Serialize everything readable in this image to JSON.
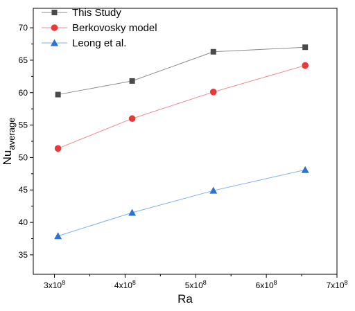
{
  "chart_data": {
    "type": "line",
    "title": "",
    "xlabel": "Ra",
    "ylabel": "Nu",
    "ylabel_sub": "average",
    "x": [
      305000000,
      410000000,
      525000000,
      655000000
    ],
    "xlim": [
      270000000,
      700000000
    ],
    "ylim": [
      32,
      73
    ],
    "x_ticks": [
      300000000,
      400000000,
      500000000,
      600000000,
      700000000
    ],
    "x_tick_labels": [
      {
        "base": "3x10",
        "exp": "8"
      },
      {
        "base": "4x10",
        "exp": "8"
      },
      {
        "base": "5x10",
        "exp": "8"
      },
      {
        "base": "6x10",
        "exp": "8"
      },
      {
        "base": "7x10",
        "exp": "8"
      }
    ],
    "y_ticks": [
      35,
      40,
      45,
      50,
      55,
      60,
      65,
      70
    ],
    "y_tick_labels": [
      "35",
      "40",
      "45",
      "50",
      "55",
      "60",
      "65",
      "70"
    ],
    "grid": false,
    "legend_position": "top-left",
    "series": [
      {
        "name": "This Study",
        "marker": "square",
        "color": "#4a4a4a",
        "line_color": "#8c8c8c",
        "values": [
          59.7,
          61.8,
          66.3,
          67.0
        ]
      },
      {
        "name": "Berkovosky model",
        "marker": "circle",
        "color": "#e8393a",
        "line_color": "#f08a8a",
        "values": [
          51.4,
          56.0,
          60.1,
          64.2
        ]
      },
      {
        "name": "Leong et al.",
        "marker": "triangle",
        "color": "#2a73d2",
        "line_color": "#7fb0ec",
        "values": [
          37.9,
          41.5,
          44.9,
          48.1
        ]
      }
    ]
  }
}
